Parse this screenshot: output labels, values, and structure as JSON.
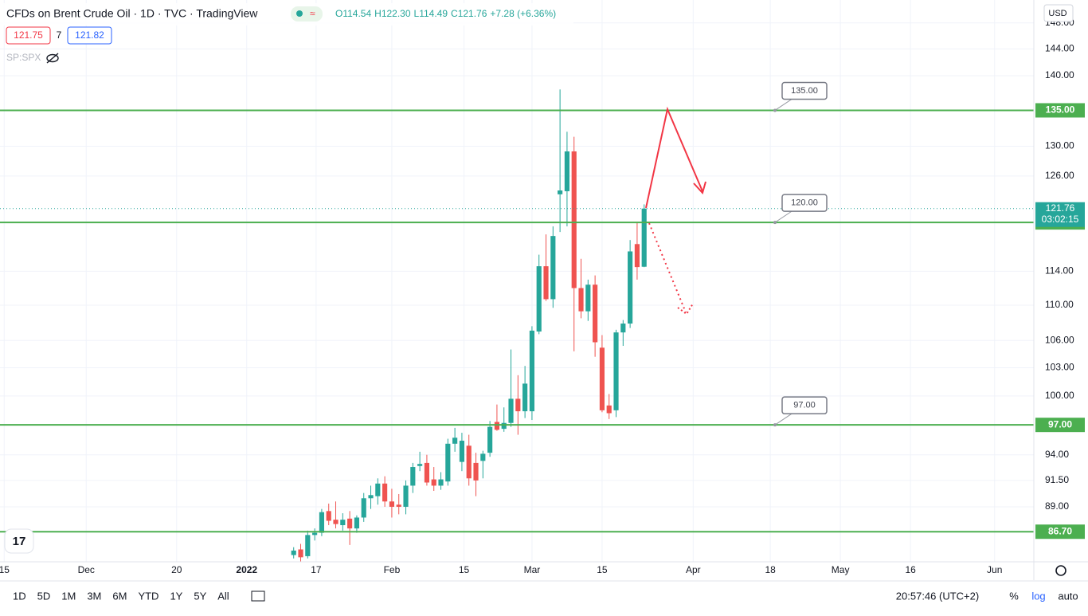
{
  "header": {
    "title": "CFDs on Brent Crude Oil · 1D · TVC · TradingView",
    "ohlc": [
      "O114.54",
      "H122.30",
      "L114.49",
      "C121.76",
      "+7.28 (+6.36%)"
    ],
    "bid": "121.75",
    "spread": "7",
    "ask": "121.82",
    "compare": "SP:SPX",
    "currency": "USD"
  },
  "toolbar": {
    "ranges": [
      "1D",
      "5D",
      "1M",
      "3M",
      "6M",
      "YTD",
      "1Y",
      "5Y",
      "All"
    ],
    "clock": "20:57:46 (UTC+2)",
    "percent": "%",
    "log": "log",
    "auto": "auto"
  },
  "chart_data": {
    "type": "candlestick",
    "title": "CFDs on Brent Crude Oil · 1D · TVC · TradingView",
    "x": [
      -34,
      -33,
      -32,
      -31,
      -30,
      -29,
      -28,
      -27,
      -26,
      -25,
      -24,
      -23,
      -22,
      -21,
      -20,
      -19,
      -18,
      -17,
      -16,
      -15,
      -14,
      -13,
      -12,
      -11,
      -10,
      -9,
      -8,
      -7,
      -6,
      -5,
      -4,
      -3,
      -2,
      -1,
      0,
      1,
      2,
      3,
      4,
      5,
      6,
      7,
      8,
      9,
      10,
      11,
      12,
      13,
      14,
      15,
      16
    ],
    "open": [
      84.6,
      85.1,
      84.5,
      86.4,
      86.6,
      88.6,
      87.8,
      87.3,
      87.9,
      87.0,
      88.0,
      89.8,
      90.0,
      91.2,
      89.5,
      89.2,
      89.0,
      91.0,
      92.9,
      93.2,
      91.6,
      91.0,
      91.4,
      95.1,
      93.3,
      94.9,
      93.2,
      93.4,
      94.2,
      97.3,
      96.6,
      97.2,
      99.7,
      98.4,
      98.4,
      107.0,
      114.6,
      110.7,
      123.6,
      124.0,
      129.3,
      112.0,
      109.3,
      112.4,
      105.2,
      99.0,
      98.5,
      106.9,
      107.9,
      117.3,
      114.54
    ],
    "high": [
      85.3,
      85.6,
      86.8,
      87.0,
      88.8,
      89.3,
      89.5,
      88.4,
      88.6,
      88.2,
      90.3,
      91.0,
      91.7,
      91.9,
      90.7,
      90.2,
      91.5,
      93.2,
      94.3,
      94.0,
      92.8,
      92.3,
      95.6,
      96.7,
      96.2,
      96.0,
      94.2,
      94.4,
      97.4,
      99.1,
      98.8,
      105.0,
      102.2,
      103.2,
      107.6,
      116.0,
      118.5,
      119.5,
      138.0,
      132.0,
      131.3,
      115.5,
      113.0,
      113.5,
      106.6,
      100.2,
      107.2,
      108.3,
      117.8,
      120.0,
      122.3
    ],
    "low": [
      84.3,
      84.0,
      84.3,
      85.9,
      86.3,
      87.3,
      87.0,
      86.8,
      85.5,
      86.6,
      87.6,
      88.8,
      89.2,
      89.0,
      88.0,
      88.3,
      88.3,
      90.3,
      92.4,
      91.0,
      90.5,
      90.6,
      91.0,
      94.3,
      92.4,
      91.0,
      90.0,
      91.7,
      93.8,
      96.4,
      96.3,
      96.8,
      96.0,
      97.7,
      97.5,
      106.7,
      110.5,
      109.7,
      118.8,
      119.5,
      104.8,
      108.5,
      108.2,
      104.2,
      98.3,
      97.6,
      97.8,
      105.4,
      107.4,
      113.0,
      114.49
    ],
    "close": [
      85.0,
      84.4,
      86.4,
      86.6,
      88.5,
      87.7,
      87.4,
      87.8,
      87.0,
      88.0,
      89.8,
      90.1,
      91.2,
      89.5,
      89.0,
      89.0,
      91.0,
      92.8,
      93.1,
      91.3,
      91.0,
      91.6,
      95.1,
      95.7,
      95.4,
      91.7,
      91.5,
      94.1,
      96.8,
      96.5,
      97.2,
      99.7,
      98.4,
      101.3,
      107.1,
      114.6,
      110.7,
      118.3,
      124.1,
      129.3,
      112.0,
      109.3,
      112.4,
      105.8,
      98.5,
      98.2,
      106.9,
      107.9,
      116.4,
      114.5,
      121.76
    ],
    "up_color": "#26a69a",
    "down_color": "#ef5350",
    "xlim": [
      -75.9,
      71.6
    ],
    "xticks": [
      {
        "value": -75.3,
        "label": "15"
      },
      {
        "value": -63.6,
        "label": "Dec"
      },
      {
        "value": -50.7,
        "label": "20"
      },
      {
        "value": -40.7,
        "label": "2022"
      },
      {
        "value": -30.8,
        "label": "17"
      },
      {
        "value": -20,
        "label": "Feb"
      },
      {
        "value": -9.7,
        "label": "15"
      },
      {
        "value": 0,
        "label": "Mar"
      },
      {
        "value": 10,
        "label": "15"
      },
      {
        "value": 23,
        "label": "Apr"
      },
      {
        "value": 34,
        "label": "18"
      },
      {
        "value": 44,
        "label": "May"
      },
      {
        "value": 54,
        "label": "16"
      },
      {
        "value": 66,
        "label": "Jun"
      }
    ],
    "ylim": [
      84,
      151.6
    ],
    "log_scale": true,
    "grid": true,
    "yticks": [
      {
        "value": 148,
        "label": "148.00"
      },
      {
        "value": 144,
        "label": "144.00"
      },
      {
        "value": 140,
        "label": "140.00"
      },
      {
        "value": 130,
        "label": "130.00"
      },
      {
        "value": 126,
        "label": "126.00"
      },
      {
        "value": 114,
        "label": "114.00"
      },
      {
        "value": 110,
        "label": "110.00"
      },
      {
        "value": 106,
        "label": "106.00"
      },
      {
        "value": 103,
        "label": "103.00"
      },
      {
        "value": 100,
        "label": "100.00"
      },
      {
        "value": 94,
        "label": "94.00"
      },
      {
        "value": 91.5,
        "label": "91.50"
      },
      {
        "value": 89,
        "label": "89.00"
      }
    ],
    "hlines": [
      {
        "value": 135,
        "label": "135.00",
        "callout": true
      },
      {
        "value": 120,
        "label": "120.00",
        "callout": true
      },
      {
        "value": 97,
        "label": "97.00",
        "callout": true
      },
      {
        "value": 86.7,
        "label": "86.70",
        "callout": false
      }
    ],
    "hline_color": "#4caf50",
    "last_price": {
      "value": 121.76,
      "label": "121.76",
      "countdown": "03:02:15"
    }
  }
}
